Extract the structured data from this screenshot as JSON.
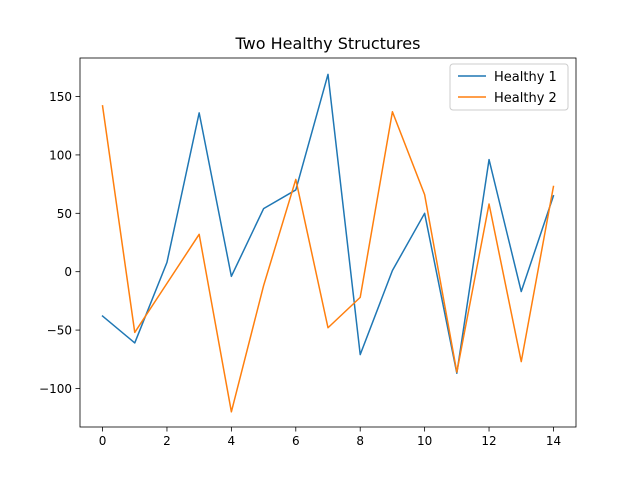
{
  "chart_data": {
    "type": "line",
    "title": "Two Healthy Structures",
    "xlabel": "",
    "ylabel": "",
    "x": [
      0,
      1,
      2,
      3,
      4,
      5,
      6,
      7,
      8,
      9,
      10,
      11,
      12,
      13,
      14
    ],
    "xlim": [
      -0.7,
      14.7
    ],
    "ylim": [
      -133,
      183
    ],
    "x_ticks": [
      0,
      2,
      4,
      6,
      8,
      10,
      12,
      14
    ],
    "x_tick_labels": [
      "0",
      "2",
      "4",
      "6",
      "8",
      "10",
      "12",
      "14"
    ],
    "y_ticks": [
      -100,
      -50,
      0,
      50,
      100,
      150
    ],
    "y_tick_labels": [
      "−100",
      "−50",
      "0",
      "50",
      "100",
      "150"
    ],
    "grid": false,
    "legend_position": "top-right",
    "series": [
      {
        "name": "Healthy 1",
        "color": "#1f77b4",
        "values": [
          -38,
          -61,
          8,
          136,
          -4,
          54,
          70,
          169,
          -71,
          1,
          50,
          -87,
          96,
          -17,
          65
        ]
      },
      {
        "name": "Healthy 2",
        "color": "#ff7f0e",
        "values": [
          142,
          -52,
          -10,
          32,
          -120,
          -12,
          79,
          -48,
          -22,
          137,
          66,
          -86,
          58,
          -77,
          73
        ]
      }
    ]
  }
}
